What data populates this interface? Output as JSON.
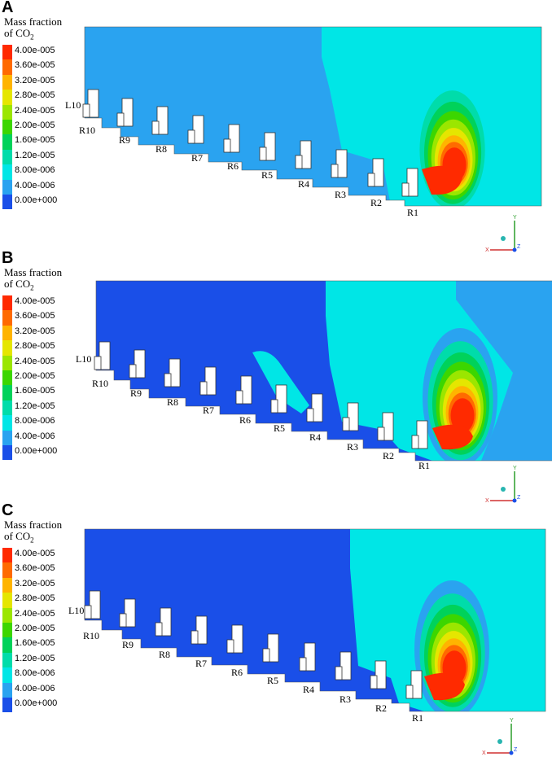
{
  "legend": {
    "title_line1": "Mass fraction",
    "title_line2_prefix": "of CO",
    "title_line2_sub": "2",
    "levels": [
      "4.00e-005",
      "3.60e-005",
      "3.20e-005",
      "2.80e-005",
      "2.40e-005",
      "2.00e-005",
      "1.60e-005",
      "1.20e-005",
      "8.00e-006",
      "4.00e-006",
      "0.00e+000"
    ],
    "colors": [
      "#ff2a00",
      "#ff6a00",
      "#ffb400",
      "#e5e600",
      "#9be600",
      "#3cd600",
      "#00d25a",
      "#00dcaa",
      "#00e6e6",
      "#2aa3f0",
      "#1a4fe8"
    ]
  },
  "panels": [
    {
      "letter": "A"
    },
    {
      "letter": "B"
    },
    {
      "letter": "C"
    }
  ],
  "labels": {
    "l10": "L10",
    "r10": "R10",
    "r9": "R9",
    "r8": "R8",
    "r7": "R7",
    "r6": "R6",
    "r5": "R5",
    "r4": "R4",
    "r3": "R3",
    "r2": "R2",
    "r1": "R1"
  },
  "axes": {
    "x": "X",
    "y": "Y",
    "z": "Z"
  }
}
